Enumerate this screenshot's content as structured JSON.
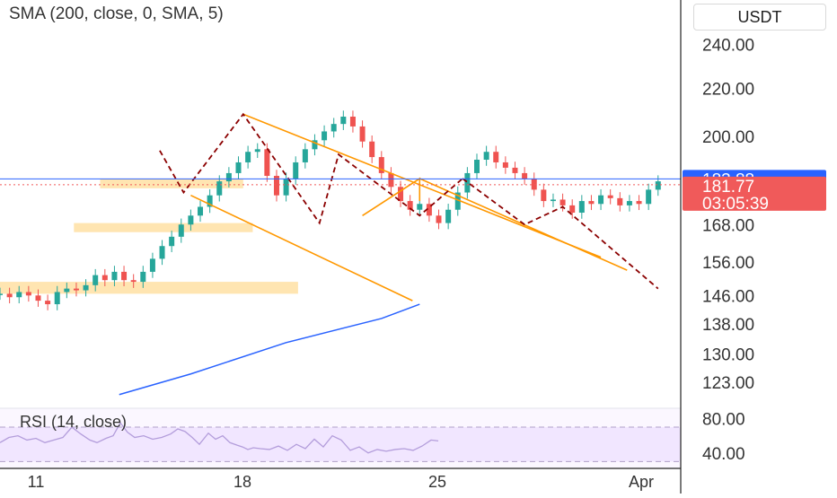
{
  "indicator_label": "SMA (200, close, 0, SMA, 5)",
  "currency": "USDT",
  "colors": {
    "up": "#26a69a",
    "down": "#ef5350",
    "sma": "#2962ff",
    "channel": "#ff9800",
    "zone": "#ffe0a3",
    "path": "#8b0000",
    "price_badge": "#f05a5a",
    "mark_badge": "#2962ff",
    "rsi_fill": "#f1e6ff",
    "rsi_line": "#b39ddb"
  },
  "chart_data": [
    {
      "type": "candlestick",
      "y_axis": {
        "scale": "log",
        "ylim": [
          117,
          262
        ],
        "ticks": [
          240,
          220,
          200,
          168,
          156,
          146,
          138,
          130,
          123
        ],
        "tick_labels": [
          "240.00",
          "220.00",
          "200.00",
          "168.00",
          "156.00",
          "146.00",
          "138.00",
          "130.00",
          "123.00"
        ]
      },
      "x_axis": {
        "tick_labels": [
          "11",
          "18",
          "25",
          "Apr"
        ]
      },
      "price_marks": [
        {
          "label": "183.88",
          "value": 183.88,
          "style": "blue-line"
        },
        {
          "label": "181.77",
          "value": 181.77,
          "style": "dotted-line"
        }
      ],
      "countdown": "03:05:39",
      "close_path": [
        [
          0,
          146.5
        ],
        [
          4,
          145.5
        ],
        [
          8,
          147.0
        ],
        [
          12,
          146.0
        ],
        [
          16,
          144.5
        ],
        [
          20,
          143.5
        ],
        [
          24,
          147.0
        ],
        [
          28,
          148.0
        ],
        [
          32,
          147.5
        ],
        [
          36,
          149.0
        ],
        [
          40,
          152.0
        ],
        [
          44,
          150.5
        ],
        [
          48,
          153.0
        ],
        [
          52,
          150.5
        ],
        [
          56,
          150.0
        ],
        [
          60,
          153.0
        ],
        [
          64,
          157.0
        ],
        [
          68,
          161.0
        ],
        [
          72,
          164.0
        ],
        [
          76,
          168.0
        ],
        [
          80,
          171.0
        ],
        [
          84,
          174.0
        ],
        [
          88,
          178.0
        ],
        [
          92,
          183.0
        ],
        [
          96,
          186.0
        ],
        [
          100,
          190.0
        ],
        [
          104,
          194.0
        ],
        [
          108,
          195.0
        ],
        [
          112,
          185.0
        ],
        [
          116,
          178.0
        ],
        [
          120,
          184.0
        ],
        [
          124,
          190.0
        ],
        [
          128,
          195.0
        ],
        [
          132,
          198.5
        ],
        [
          136,
          202.0
        ],
        [
          140,
          205.0
        ],
        [
          144,
          208.0
        ],
        [
          148,
          204.0
        ],
        [
          152,
          198.0
        ],
        [
          156,
          192.0
        ],
        [
          160,
          186.0
        ],
        [
          164,
          181.0
        ],
        [
          168,
          176.0
        ],
        [
          172,
          173.0
        ],
        [
          176,
          175.0
        ],
        [
          180,
          171.0
        ],
        [
          184,
          168.5
        ],
        [
          188,
          173.0
        ],
        [
          192,
          179.0
        ],
        [
          196,
          186.0
        ],
        [
          200,
          191.0
        ],
        [
          204,
          194.0
        ],
        [
          208,
          190.0
        ],
        [
          212,
          188.0
        ],
        [
          216,
          186.0
        ],
        [
          220,
          184.0
        ],
        [
          224,
          180.0
        ],
        [
          228,
          176.0
        ],
        [
          232,
          176.5
        ],
        [
          236,
          174.5
        ],
        [
          240,
          172.0
        ],
        [
          244,
          176.0
        ],
        [
          248,
          175.0
        ],
        [
          252,
          178.0
        ],
        [
          256,
          177.0
        ],
        [
          260,
          174.5
        ],
        [
          264,
          176.0
        ],
        [
          268,
          175.0
        ],
        [
          272,
          180.0
        ],
        [
          276,
          183.0
        ]
      ],
      "zones": [
        {
          "x": [
            42,
            102
          ],
          "y": [
            180.5,
            184.0
          ]
        },
        {
          "x": [
            31,
            106
          ],
          "y": [
            165.5,
            168.5
          ]
        },
        {
          "x": [
            0,
            125
          ],
          "y": [
            146.5,
            150.0
          ]
        }
      ],
      "descending_channel": [
        {
          "points": [
            [
              102,
              209.0
            ],
            [
              252,
              157.5
            ]
          ]
        },
        {
          "points": [
            [
              80,
              178.0
            ],
            [
              173,
              144.5
            ]
          ]
        },
        {
          "points": [
            [
              176,
              184.0
            ],
            [
              263,
              153.5
            ]
          ]
        }
      ],
      "zigzag_pattern": [
        [
          67,
          194.5
        ],
        [
          77,
          179.0
        ],
        [
          102,
          209.0
        ],
        [
          134,
          168.5
        ],
        [
          142,
          193.0
        ],
        [
          176,
          171.0
        ],
        [
          194,
          184.0
        ]
      ],
      "projected_path": [
        [
          194,
          184.0
        ],
        [
          220,
          168.0
        ],
        [
          236,
          174.0
        ],
        [
          276,
          148.0
        ]
      ],
      "rising_leg": [
        [
          152,
          171.0
        ],
        [
          176,
          184.0
        ],
        [
          176,
          176.0
        ]
      ],
      "sma_200": [
        [
          50,
          120.0
        ],
        [
          80,
          125.0
        ],
        [
          120,
          133.0
        ],
        [
          160,
          139.5
        ],
        [
          176,
          143.5
        ]
      ]
    },
    {
      "type": "line",
      "title": "RSI (14, close)",
      "y_axis": {
        "ylim": [
          22,
          92
        ],
        "ticks": [
          80,
          40
        ],
        "tick_labels": [
          "80.00",
          "40.00"
        ]
      },
      "band": [
        30,
        70
      ],
      "values": [
        [
          0,
          52
        ],
        [
          10,
          58
        ],
        [
          20,
          60
        ],
        [
          30,
          55
        ],
        [
          40,
          57
        ],
        [
          50,
          52
        ],
        [
          60,
          55
        ],
        [
          70,
          58
        ],
        [
          80,
          70
        ],
        [
          90,
          62
        ],
        [
          100,
          55
        ],
        [
          108,
          52
        ],
        [
          118,
          57
        ],
        [
          126,
          60
        ],
        [
          134,
          75
        ],
        [
          142,
          64
        ],
        [
          150,
          58
        ],
        [
          160,
          60
        ],
        [
          170,
          56
        ],
        [
          180,
          58
        ],
        [
          190,
          62
        ],
        [
          198,
          68
        ],
        [
          206,
          65
        ],
        [
          214,
          58
        ],
        [
          222,
          50
        ],
        [
          232,
          63
        ],
        [
          240,
          56
        ],
        [
          248,
          60
        ],
        [
          256,
          52
        ],
        [
          264,
          49
        ],
        [
          270,
          47
        ],
        [
          276,
          44
        ],
        [
          282,
          46
        ],
        [
          290,
          45
        ],
        [
          300,
          44
        ],
        [
          310,
          48
        ],
        [
          320,
          43
        ],
        [
          330,
          50
        ],
        [
          340,
          45
        ],
        [
          350,
          56
        ],
        [
          360,
          47
        ],
        [
          370,
          60
        ],
        [
          380,
          55
        ],
        [
          390,
          43
        ],
        [
          400,
          47
        ],
        [
          410,
          40
        ],
        [
          420,
          44
        ],
        [
          430,
          42
        ],
        [
          440,
          44
        ],
        [
          450,
          45
        ],
        [
          460,
          43
        ],
        [
          470,
          48
        ],
        [
          480,
          55
        ],
        [
          488,
          54
        ]
      ]
    }
  ]
}
